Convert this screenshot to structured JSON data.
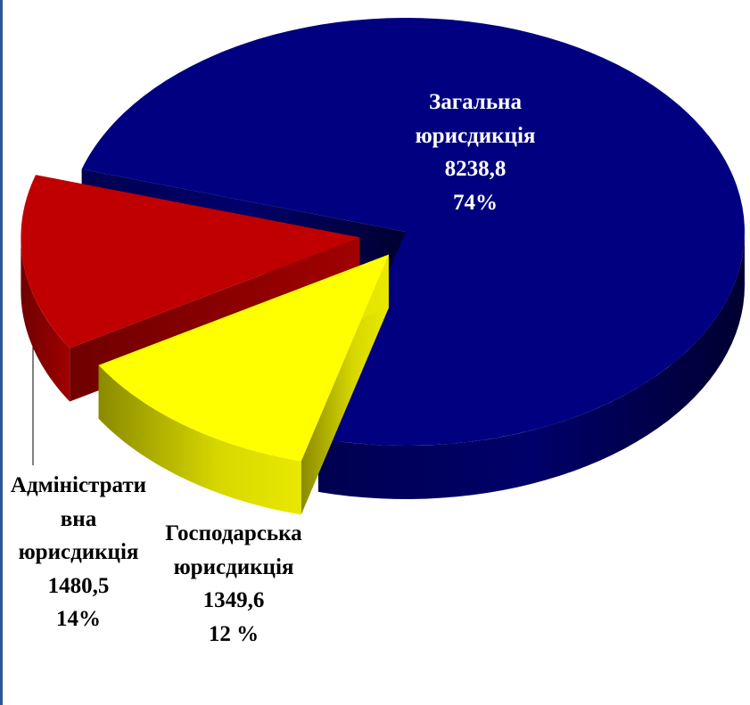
{
  "chart_data": {
    "type": "pie",
    "categories": [
      "Загальна юрисдикція",
      "Господарська юрисдикція",
      "Адміністративна юрисдикція"
    ],
    "values": [
      8238.8,
      1349.6,
      1480.5
    ],
    "value_labels": [
      "8238,8",
      "1349,6",
      "1480,5"
    ],
    "percents": [
      74,
      12,
      14
    ],
    "percent_labels": [
      "74%",
      "12 %",
      "14%"
    ],
    "colors": [
      "#000080",
      "#ffff00",
      "#c00000"
    ],
    "label_colors": [
      "#ffffff",
      "#000000",
      "#000000"
    ]
  }
}
